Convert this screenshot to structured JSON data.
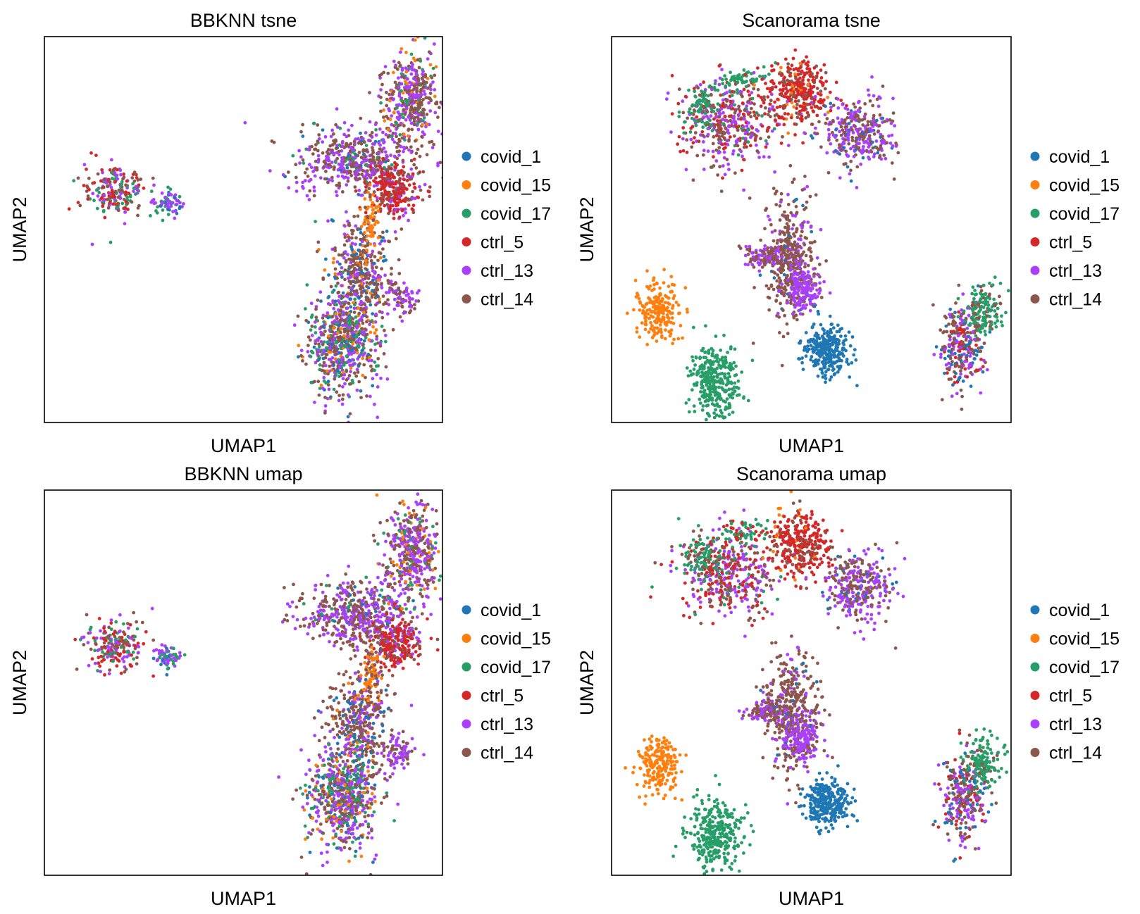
{
  "figure": {
    "background": "#ffffff",
    "legend_placement": "right-outside"
  },
  "legend": [
    {
      "name": "covid_1",
      "color": "#1f77b4"
    },
    {
      "name": "covid_15",
      "color": "#ff7f0e"
    },
    {
      "name": "covid_17",
      "color": "#279e68"
    },
    {
      "name": "ctrl_5",
      "color": "#d62728"
    },
    {
      "name": "ctrl_13",
      "color": "#aa40fc"
    },
    {
      "name": "ctrl_14",
      "color": "#8c564b"
    }
  ],
  "chart_data": [
    {
      "type": "scatter",
      "title": "BBKNN tsne",
      "xlabel": "UMAP1",
      "ylabel": "UMAP2",
      "xlim": [
        0,
        100
      ],
      "ylim": [
        0,
        100
      ],
      "grid": false,
      "ticks": false,
      "clusters": [
        {
          "cx": 18,
          "cy": 60,
          "rx": 7,
          "ry": 6,
          "n": 200,
          "mix": {
            "covid_17": 0.25,
            "ctrl_5": 0.25,
            "ctrl_13": 0.25,
            "ctrl_14": 0.25
          }
        },
        {
          "cx": 31,
          "cy": 57,
          "rx": 3,
          "ry": 3,
          "n": 70,
          "mix": {
            "covid_1": 0.2,
            "covid_17": 0.3,
            "ctrl_13": 0.5
          }
        },
        {
          "cx": 78,
          "cy": 68,
          "rx": 13,
          "ry": 8,
          "n": 500,
          "mix": {
            "ctrl_13": 0.45,
            "ctrl_14": 0.45,
            "covid_17": 0.05,
            "covid_1": 0.05
          }
        },
        {
          "cx": 92,
          "cy": 84,
          "rx": 6,
          "ry": 11,
          "n": 420,
          "mix": {
            "ctrl_13": 0.4,
            "ctrl_14": 0.4,
            "covid_17": 0.1,
            "covid_15": 0.1
          }
        },
        {
          "cx": 88,
          "cy": 60,
          "rx": 6,
          "ry": 6,
          "n": 260,
          "mix": {
            "ctrl_5": 0.6,
            "ctrl_14": 0.25,
            "ctrl_13": 0.15
          }
        },
        {
          "cx": 79,
          "cy": 40,
          "rx": 7,
          "ry": 12,
          "n": 380,
          "mix": {
            "ctrl_14": 0.55,
            "covid_15": 0.1,
            "ctrl_13": 0.2,
            "covid_1": 0.15
          }
        },
        {
          "cx": 75,
          "cy": 20,
          "rx": 8,
          "ry": 12,
          "n": 650,
          "mix": {
            "ctrl_13": 0.3,
            "covid_17": 0.2,
            "ctrl_14": 0.3,
            "covid_15": 0.1,
            "covid_1": 0.1
          }
        },
        {
          "cx": 89,
          "cy": 32,
          "rx": 4,
          "ry": 4,
          "n": 80,
          "mix": {
            "ctrl_13": 0.6,
            "ctrl_14": 0.4
          }
        },
        {
          "cx": 82,
          "cy": 52,
          "rx": 2,
          "ry": 6,
          "n": 70,
          "mix": {
            "covid_15": 0.7,
            "ctrl_14": 0.3
          }
        }
      ]
    },
    {
      "type": "scatter",
      "title": "Scanorama tsne",
      "xlabel": "UMAP1",
      "ylabel": "UMAP2",
      "xlim": [
        0,
        100
      ],
      "ylim": [
        0,
        100
      ],
      "grid": false,
      "ticks": false,
      "clusters": [
        {
          "cx": 29,
          "cy": 78,
          "rx": 11,
          "ry": 10,
          "n": 420,
          "mix": {
            "ctrl_13": 0.35,
            "ctrl_14": 0.3,
            "ctrl_5": 0.25,
            "covid_17": 0.1
          }
        },
        {
          "cx": 22,
          "cy": 82,
          "rx": 4,
          "ry": 6,
          "n": 80,
          "mix": {
            "covid_17": 0.8,
            "ctrl_14": 0.2
          }
        },
        {
          "cx": 33,
          "cy": 89,
          "rx": 6,
          "ry": 3,
          "n": 60,
          "mix": {
            "covid_17": 0.8,
            "ctrl_5": 0.2
          }
        },
        {
          "cx": 47,
          "cy": 86,
          "rx": 7,
          "ry": 8,
          "n": 330,
          "mix": {
            "ctrl_5": 0.65,
            "covid_15": 0.1,
            "ctrl_14": 0.25
          }
        },
        {
          "cx": 62,
          "cy": 75,
          "rx": 8,
          "ry": 8,
          "n": 320,
          "mix": {
            "ctrl_13": 0.5,
            "ctrl_14": 0.4,
            "covid_1": 0.1
          }
        },
        {
          "cx": 39,
          "cy": 43,
          "rx": 5,
          "ry": 2.5,
          "n": 110,
          "mix": {
            "ctrl_13": 0.6,
            "ctrl_14": 0.4
          }
        },
        {
          "cx": 45,
          "cy": 42,
          "rx": 6,
          "ry": 14,
          "n": 420,
          "mix": {
            "ctrl_14": 0.8,
            "ctrl_13": 0.15,
            "covid_1": 0.05
          }
        },
        {
          "cx": 48,
          "cy": 35,
          "rx": 4,
          "ry": 5,
          "n": 140,
          "mix": {
            "ctrl_13": 0.9,
            "ctrl_14": 0.1
          }
        },
        {
          "cx": 12,
          "cy": 29,
          "rx": 5,
          "ry": 7,
          "n": 200,
          "mix": {
            "covid_15": 1.0
          }
        },
        {
          "cx": 26,
          "cy": 11,
          "rx": 6,
          "ry": 8,
          "n": 330,
          "mix": {
            "covid_17": 1.0
          }
        },
        {
          "cx": 54,
          "cy": 19,
          "rx": 5,
          "ry": 6,
          "n": 300,
          "mix": {
            "covid_1": 1.0
          }
        },
        {
          "cx": 88,
          "cy": 20,
          "rx": 5,
          "ry": 10,
          "n": 280,
          "mix": {
            "ctrl_13": 0.3,
            "ctrl_5": 0.2,
            "covid_1": 0.2,
            "ctrl_14": 0.3
          }
        },
        {
          "cx": 93,
          "cy": 29,
          "rx": 4,
          "ry": 6,
          "n": 150,
          "mix": {
            "covid_17": 0.8,
            "ctrl_14": 0.2
          }
        }
      ]
    },
    {
      "type": "scatter",
      "title": "BBKNN umap",
      "xlabel": "UMAP1",
      "ylabel": "UMAP2",
      "xlim": [
        0,
        100
      ],
      "ylim": [
        0,
        100
      ],
      "grid": false,
      "ticks": false,
      "clusters": [
        {
          "cx": 18,
          "cy": 60,
          "rx": 7,
          "ry": 6,
          "n": 200,
          "mix": {
            "covid_17": 0.25,
            "ctrl_5": 0.25,
            "ctrl_13": 0.25,
            "ctrl_14": 0.25
          }
        },
        {
          "cx": 31,
          "cy": 57,
          "rx": 3,
          "ry": 3,
          "n": 70,
          "mix": {
            "covid_1": 0.2,
            "covid_17": 0.3,
            "ctrl_13": 0.5
          }
        },
        {
          "cx": 78,
          "cy": 68,
          "rx": 13,
          "ry": 8,
          "n": 500,
          "mix": {
            "ctrl_13": 0.45,
            "ctrl_14": 0.45,
            "covid_17": 0.05,
            "covid_1": 0.05
          }
        },
        {
          "cx": 92,
          "cy": 84,
          "rx": 6,
          "ry": 11,
          "n": 420,
          "mix": {
            "ctrl_13": 0.4,
            "ctrl_14": 0.4,
            "covid_17": 0.1,
            "covid_15": 0.1
          }
        },
        {
          "cx": 88,
          "cy": 60,
          "rx": 6,
          "ry": 6,
          "n": 260,
          "mix": {
            "ctrl_5": 0.6,
            "ctrl_14": 0.25,
            "ctrl_13": 0.15
          }
        },
        {
          "cx": 79,
          "cy": 40,
          "rx": 7,
          "ry": 12,
          "n": 380,
          "mix": {
            "ctrl_14": 0.55,
            "covid_15": 0.1,
            "ctrl_13": 0.2,
            "covid_1": 0.15
          }
        },
        {
          "cx": 75,
          "cy": 20,
          "rx": 8,
          "ry": 12,
          "n": 650,
          "mix": {
            "ctrl_13": 0.3,
            "covid_17": 0.2,
            "ctrl_14": 0.3,
            "covid_15": 0.1,
            "covid_1": 0.1
          }
        },
        {
          "cx": 89,
          "cy": 32,
          "rx": 4,
          "ry": 4,
          "n": 80,
          "mix": {
            "ctrl_13": 0.6,
            "ctrl_14": 0.4
          }
        },
        {
          "cx": 82,
          "cy": 52,
          "rx": 2,
          "ry": 6,
          "n": 70,
          "mix": {
            "covid_15": 0.7,
            "ctrl_14": 0.3
          }
        }
      ]
    },
    {
      "type": "scatter",
      "title": "Scanorama umap",
      "xlabel": "UMAP1",
      "ylabel": "UMAP2",
      "xlim": [
        0,
        100
      ],
      "ylim": [
        0,
        100
      ],
      "grid": false,
      "ticks": false,
      "clusters": [
        {
          "cx": 29,
          "cy": 78,
          "rx": 11,
          "ry": 10,
          "n": 420,
          "mix": {
            "ctrl_13": 0.35,
            "ctrl_14": 0.3,
            "ctrl_5": 0.25,
            "covid_17": 0.1
          }
        },
        {
          "cx": 22,
          "cy": 82,
          "rx": 4,
          "ry": 6,
          "n": 80,
          "mix": {
            "covid_17": 0.8,
            "ctrl_14": 0.2
          }
        },
        {
          "cx": 33,
          "cy": 89,
          "rx": 6,
          "ry": 3,
          "n": 60,
          "mix": {
            "covid_17": 0.8,
            "ctrl_5": 0.2
          }
        },
        {
          "cx": 47,
          "cy": 86,
          "rx": 7,
          "ry": 8,
          "n": 330,
          "mix": {
            "ctrl_5": 0.65,
            "covid_15": 0.1,
            "ctrl_14": 0.25
          }
        },
        {
          "cx": 62,
          "cy": 75,
          "rx": 8,
          "ry": 8,
          "n": 320,
          "mix": {
            "ctrl_13": 0.5,
            "ctrl_14": 0.4,
            "covid_1": 0.1
          }
        },
        {
          "cx": 39,
          "cy": 43,
          "rx": 5,
          "ry": 2.5,
          "n": 110,
          "mix": {
            "ctrl_13": 0.6,
            "ctrl_14": 0.4
          }
        },
        {
          "cx": 45,
          "cy": 42,
          "rx": 6,
          "ry": 14,
          "n": 420,
          "mix": {
            "ctrl_14": 0.8,
            "ctrl_13": 0.15,
            "covid_1": 0.05
          }
        },
        {
          "cx": 48,
          "cy": 35,
          "rx": 4,
          "ry": 5,
          "n": 140,
          "mix": {
            "ctrl_13": 0.9,
            "ctrl_14": 0.1
          }
        },
        {
          "cx": 12,
          "cy": 29,
          "rx": 5,
          "ry": 7,
          "n": 200,
          "mix": {
            "covid_15": 1.0
          }
        },
        {
          "cx": 26,
          "cy": 11,
          "rx": 6,
          "ry": 8,
          "n": 330,
          "mix": {
            "covid_17": 1.0
          }
        },
        {
          "cx": 54,
          "cy": 19,
          "rx": 5,
          "ry": 6,
          "n": 300,
          "mix": {
            "covid_1": 1.0
          }
        },
        {
          "cx": 88,
          "cy": 20,
          "rx": 5,
          "ry": 10,
          "n": 280,
          "mix": {
            "ctrl_13": 0.3,
            "ctrl_5": 0.2,
            "covid_1": 0.2,
            "ctrl_14": 0.3
          }
        },
        {
          "cx": 93,
          "cy": 29,
          "rx": 4,
          "ry": 6,
          "n": 150,
          "mix": {
            "covid_17": 0.8,
            "ctrl_14": 0.2
          }
        }
      ]
    }
  ]
}
